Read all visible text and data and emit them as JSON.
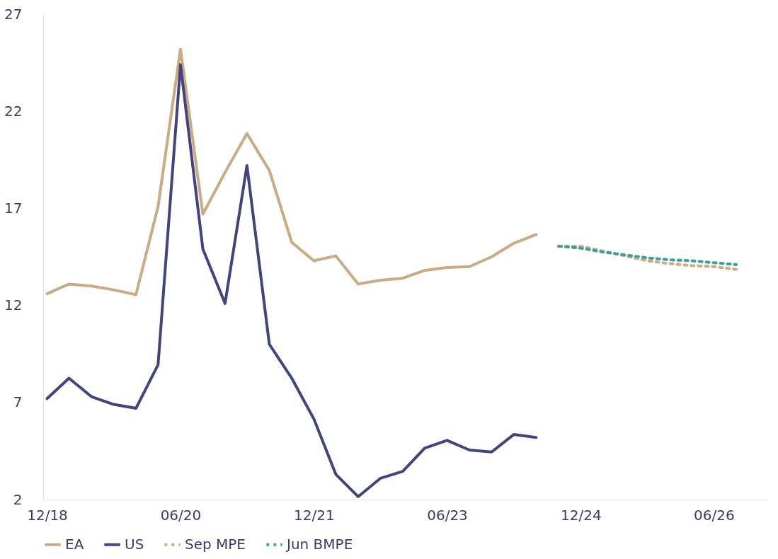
{
  "chart_data": {
    "type": "line",
    "xlim": [
      "2018-11-15",
      "2027-01-01"
    ],
    "xticks": [
      {
        "value": "2018-12",
        "label": "12/18"
      },
      {
        "value": "2020-06",
        "label": "06/20"
      },
      {
        "value": "2021-12",
        "label": "12/21"
      },
      {
        "value": "2023-06",
        "label": "06/23"
      },
      {
        "value": "2024-12",
        "label": "12/24"
      },
      {
        "value": "2026-06",
        "label": "06/26"
      }
    ],
    "ylim": [
      2,
      27
    ],
    "yticks": [
      2,
      7,
      12,
      17,
      22,
      27
    ],
    "grid": false,
    "legend": "bottom",
    "series": [
      {
        "name": "EA",
        "color": "#cbab84",
        "line_style": "solid",
        "x": [
          "2018-12",
          "2019-03",
          "2019-06",
          "2019-09",
          "2019-12",
          "2020-03",
          "2020-06",
          "2020-09",
          "2020-12",
          "2021-03",
          "2021-06",
          "2021-09",
          "2021-12",
          "2022-03",
          "2022-06",
          "2022-09",
          "2022-12",
          "2023-03",
          "2023-06",
          "2023-09",
          "2023-12",
          "2024-03",
          "2024-06"
        ],
        "values": [
          12.6,
          13.1,
          13.0,
          12.8,
          12.55,
          17.1,
          25.2,
          16.7,
          18.85,
          20.85,
          18.95,
          15.25,
          14.3,
          14.55,
          13.1,
          13.3,
          13.4,
          13.8,
          13.95,
          14.0,
          14.5,
          15.2,
          15.65
        ]
      },
      {
        "name": "US",
        "color": "#43437d",
        "line_style": "solid",
        "x": [
          "2018-12",
          "2019-03",
          "2019-06",
          "2019-09",
          "2019-12",
          "2020-03",
          "2020-06",
          "2020-09",
          "2020-12",
          "2021-03",
          "2021-06",
          "2021-09",
          "2021-12",
          "2022-03",
          "2022-06",
          "2022-09",
          "2022-12",
          "2023-03",
          "2023-06",
          "2023-09",
          "2023-12",
          "2024-03",
          "2024-06"
        ],
        "values": [
          7.2,
          8.25,
          7.3,
          6.9,
          6.7,
          8.95,
          24.4,
          14.9,
          12.1,
          19.2,
          10.0,
          8.25,
          6.15,
          3.3,
          2.15,
          3.1,
          3.45,
          4.65,
          5.05,
          4.55,
          4.45,
          5.35,
          5.2
        ]
      },
      {
        "name": "Sep MPE",
        "color": "#cbab84",
        "line_style": "dashed",
        "x": [
          "2024-09",
          "2024-12",
          "2025-03",
          "2025-06",
          "2025-09",
          "2025-12",
          "2026-03",
          "2026-06",
          "2026-09"
        ],
        "values": [
          15.05,
          15.05,
          14.8,
          14.55,
          14.3,
          14.15,
          14.05,
          14.0,
          13.85
        ]
      },
      {
        "name": "Jun BMPE",
        "color": "#3d9f9c",
        "line_style": "dashed",
        "x": [
          "2024-09",
          "2024-12",
          "2025-03",
          "2025-06",
          "2025-09",
          "2025-12",
          "2026-03",
          "2026-06",
          "2026-09"
        ],
        "values": [
          15.05,
          14.95,
          14.75,
          14.6,
          14.45,
          14.35,
          14.3,
          14.2,
          14.1
        ]
      }
    ]
  }
}
